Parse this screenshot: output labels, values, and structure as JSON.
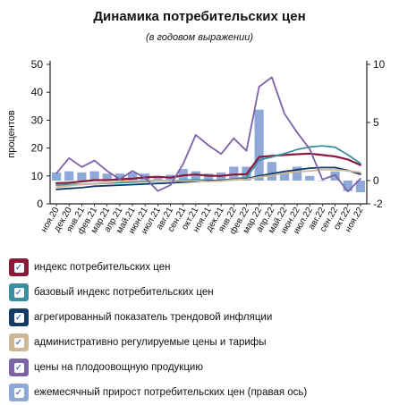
{
  "title": "Динамика потребительских цен",
  "subtitle": "(в годовом выражении)",
  "chart_data": {
    "type": "line",
    "categories": [
      "ноя.20",
      "дек.20",
      "янв.21",
      "фев.21",
      "мар.21",
      "апр.21",
      "май.21",
      "июн.21",
      "июл.21",
      "авг.21",
      "сен.21",
      "окт.21",
      "ноя.21",
      "дек.21",
      "янв.22",
      "фев.22",
      "мар.22",
      "апр.22",
      "май.22",
      "июн.22",
      "июл.22",
      "авг.22",
      "сен.22",
      "окт.22",
      "ноя.22"
    ],
    "ylabel": "процентов",
    "ylim": [
      0,
      50
    ],
    "yticks": [
      0,
      10,
      20,
      30,
      40,
      50
    ],
    "y2lim": [
      -2,
      10
    ],
    "y2ticks": [
      -2,
      0,
      5,
      10
    ],
    "grid": false,
    "bars": {
      "name": "ежемесячный прирост потребительских цен (правая ось)",
      "axis": "right",
      "color": "#8ea8d8",
      "values": [
        0.7,
        0.8,
        0.7,
        0.8,
        0.6,
        0.6,
        0.7,
        0.6,
        0.4,
        0.5,
        1.0,
        0.8,
        0.6,
        0.7,
        1.2,
        1.2,
        6.1,
        1.6,
        0.7,
        1.2,
        0.4,
        0.0,
        0.8,
        -0.9,
        -1.0
      ]
    },
    "series": [
      {
        "name": "индекс потребительских цен",
        "color": "#8b1a3a",
        "values": [
          7.4,
          7.6,
          8.0,
          8.5,
          8.5,
          8.8,
          9.0,
          9.5,
          9.7,
          9.4,
          10.2,
          10.5,
          10.1,
          10.0,
          10.5,
          10.6,
          16.8,
          17.2,
          17.5,
          17.8,
          18.0,
          17.5,
          17.0,
          15.9,
          13.9
        ]
      },
      {
        "name": "базовый индекс потребительских цен",
        "color": "#3a8fa0",
        "values": [
          6.7,
          7.0,
          7.0,
          7.2,
          7.4,
          7.6,
          7.8,
          8.0,
          8.3,
          8.2,
          8.5,
          8.6,
          8.4,
          8.4,
          9.0,
          9.4,
          15.7,
          16.8,
          18.0,
          19.5,
          20.4,
          20.8,
          20.3,
          17.6,
          14.5
        ]
      },
      {
        "name": "агрегированный показатель трендовой инфляции",
        "color": "#123a66",
        "values": [
          5.2,
          5.5,
          5.8,
          6.3,
          6.5,
          6.7,
          6.9,
          7.1,
          7.3,
          7.5,
          7.8,
          8.0,
          8.3,
          8.4,
          8.6,
          9.0,
          10.0,
          10.8,
          11.6,
          12.2,
          12.8,
          13.0,
          13.0,
          12.0,
          10.6
        ]
      },
      {
        "name": "административно регулируемые цены и тарифы",
        "color": "#cdb894",
        "values": [
          6.0,
          6.5,
          7.0,
          7.3,
          7.6,
          8.0,
          8.2,
          8.4,
          8.4,
          8.3,
          8.2,
          8.2,
          8.0,
          8.2,
          8.6,
          8.8,
          9.6,
          10.2,
          11.0,
          11.5,
          11.8,
          12.2,
          12.3,
          11.8,
          11.3
        ]
      },
      {
        "name": "цены на плодоовощную продукцию",
        "color": "#7b63a8",
        "values": [
          11.0,
          16.4,
          13.2,
          15.5,
          11.8,
          8.8,
          11.8,
          9.3,
          4.6,
          6.7,
          14.3,
          24.7,
          21.0,
          17.9,
          23.5,
          19.0,
          42.0,
          45.4,
          32.3,
          25.6,
          19.6,
          8.7,
          10.4,
          4.4,
          9.0
        ]
      }
    ]
  },
  "legend": [
    {
      "label": "индекс потребительских цен",
      "color": "#8b1a3a",
      "checked": "✓"
    },
    {
      "label": "базовый индекс потребительских цен",
      "color": "#3a8fa0",
      "checked": "✓"
    },
    {
      "label": "агрегированный показатель трендовой инфляции",
      "color": "#123a66",
      "checked": "✓"
    },
    {
      "label": "административно регулируемые цены и тарифы",
      "color": "#cdb894",
      "checked": "✓"
    },
    {
      "label": "цены на плодоовощную продукцию",
      "color": "#7b63a8",
      "checked": "✓"
    },
    {
      "label": "ежемесячный прирост потребительских цен (правая ось)",
      "color": "#8ea8d8",
      "checked": "✓"
    }
  ]
}
